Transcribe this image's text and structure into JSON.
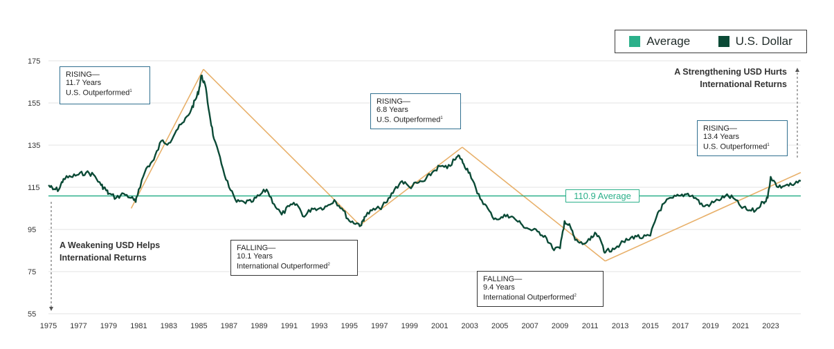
{
  "legend": {
    "average_label": "Average",
    "usd_label": "U.S. Dollar",
    "average_color": "#2bb08a",
    "usd_color": "#0b4a36"
  },
  "annotations": {
    "top_right": [
      "A Strengthening USD Hurts",
      "International Returns"
    ],
    "bottom_left": [
      "A Weakening USD Helps",
      "International Returns"
    ],
    "average_label": "110.9 Average"
  },
  "boxes": [
    {
      "lines": [
        "RISING—",
        "11.7 Years",
        "U.S. Outperformed"
      ],
      "sup": "1"
    },
    {
      "lines": [
        "RISING—",
        "6.8 Years",
        "U.S. Outperformed"
      ],
      "sup": "1"
    },
    {
      "lines": [
        "RISING—",
        "13.4 Years",
        "U.S. Outperformed"
      ],
      "sup": "1"
    },
    {
      "lines": [
        "FALLING—",
        "10.1 Years",
        "International Outperformed"
      ],
      "sup": "2"
    },
    {
      "lines": [
        "FALLING—",
        "9.4 Years",
        "International Outperformed"
      ],
      "sup": "2"
    }
  ],
  "chart_data": {
    "type": "line",
    "xlim": [
      1975,
      2025
    ],
    "ylim": [
      55,
      175
    ],
    "y_ticks": [
      55,
      75,
      95,
      115,
      135,
      155,
      175
    ],
    "x_ticks": [
      1975,
      1977,
      1979,
      1981,
      1983,
      1985,
      1987,
      1989,
      1991,
      1993,
      1995,
      1997,
      1999,
      2001,
      2003,
      2005,
      2007,
      2009,
      2011,
      2013,
      2015,
      2017,
      2019,
      2021,
      2023
    ],
    "average": 110.9,
    "trend_color": "#e8b06a",
    "trend_lines": [
      [
        1980.5,
        105,
        1985.3,
        171
      ],
      [
        1985.3,
        171,
        1995.7,
        97
      ],
      [
        1995.7,
        97,
        2002.5,
        134
      ],
      [
        2002.5,
        134,
        2012.0,
        80
      ],
      [
        2012.0,
        80,
        2025.0,
        122
      ]
    ],
    "series": [
      {
        "x": [
          1975.0,
          1975.3,
          1975.7,
          1976.0,
          1976.5,
          1977.0,
          1977.5,
          1978.0,
          1978.5,
          1978.8,
          1979.0,
          1979.5,
          1980.0,
          1980.5,
          1980.8,
          1981.0,
          1981.5,
          1982.0,
          1982.5,
          1983.0,
          1983.5,
          1984.0,
          1984.5,
          1984.8,
          1985.0,
          1985.15,
          1985.4,
          1985.7,
          1986.0,
          1986.5,
          1987.0,
          1987.5,
          1988.0,
          1988.5,
          1989.0,
          1989.5,
          1990.0,
          1990.5,
          1991.0,
          1991.5,
          1992.0,
          1992.5,
          1993.0,
          1993.5,
          1994.0,
          1994.5,
          1995.0,
          1995.5,
          1995.8,
          1996.0,
          1996.5,
          1997.0,
          1997.5,
          1998.0,
          1998.5,
          1999.0,
          1999.5,
          2000.0,
          2000.5,
          2001.0,
          2001.5,
          2002.0,
          2002.3,
          2002.6,
          2003.0,
          2003.5,
          2004.0,
          2004.5,
          2005.0,
          2005.5,
          2006.0,
          2006.5,
          2007.0,
          2007.5,
          2008.0,
          2008.5,
          2009.0,
          2009.3,
          2009.7,
          2010.0,
          2010.5,
          2011.0,
          2011.4,
          2011.8,
          2012.0,
          2012.5,
          2013.0,
          2013.5,
          2014.0,
          2014.5,
          2015.0,
          2015.5,
          2016.0,
          2016.5,
          2017.0,
          2017.5,
          2018.0,
          2018.5,
          2019.0,
          2019.5,
          2020.0,
          2020.5,
          2021.0,
          2021.5,
          2022.0,
          2022.5,
          2022.8,
          2023.0,
          2023.5,
          2024.0,
          2024.5,
          2025.0
        ],
        "values": [
          116,
          114,
          114,
          119,
          120,
          121,
          122,
          121,
          116,
          114,
          112,
          110,
          112,
          110,
          108,
          114,
          124,
          128,
          137,
          136,
          142,
          146,
          152,
          157,
          161,
          168,
          164,
          150,
          138,
          126,
          115,
          108,
          108,
          108,
          111,
          114,
          107,
          102,
          106,
          107,
          101,
          105,
          105,
          106,
          109,
          105,
          99,
          98,
          97,
          101,
          104,
          105,
          108,
          114,
          118,
          115,
          117,
          118,
          122,
          125,
          124,
          128,
          130,
          126,
          122,
          112,
          107,
          101,
          100,
          102,
          100,
          97,
          95,
          94,
          92,
          86,
          86,
          99,
          96,
          90,
          88,
          90,
          93,
          88,
          84,
          86,
          88,
          90,
          92,
          91,
          92,
          103,
          108,
          110,
          111,
          112,
          110,
          106,
          107,
          109,
          111,
          110,
          106,
          104,
          104,
          108,
          110,
          120,
          115,
          116,
          116,
          118
        ]
      }
    ]
  }
}
